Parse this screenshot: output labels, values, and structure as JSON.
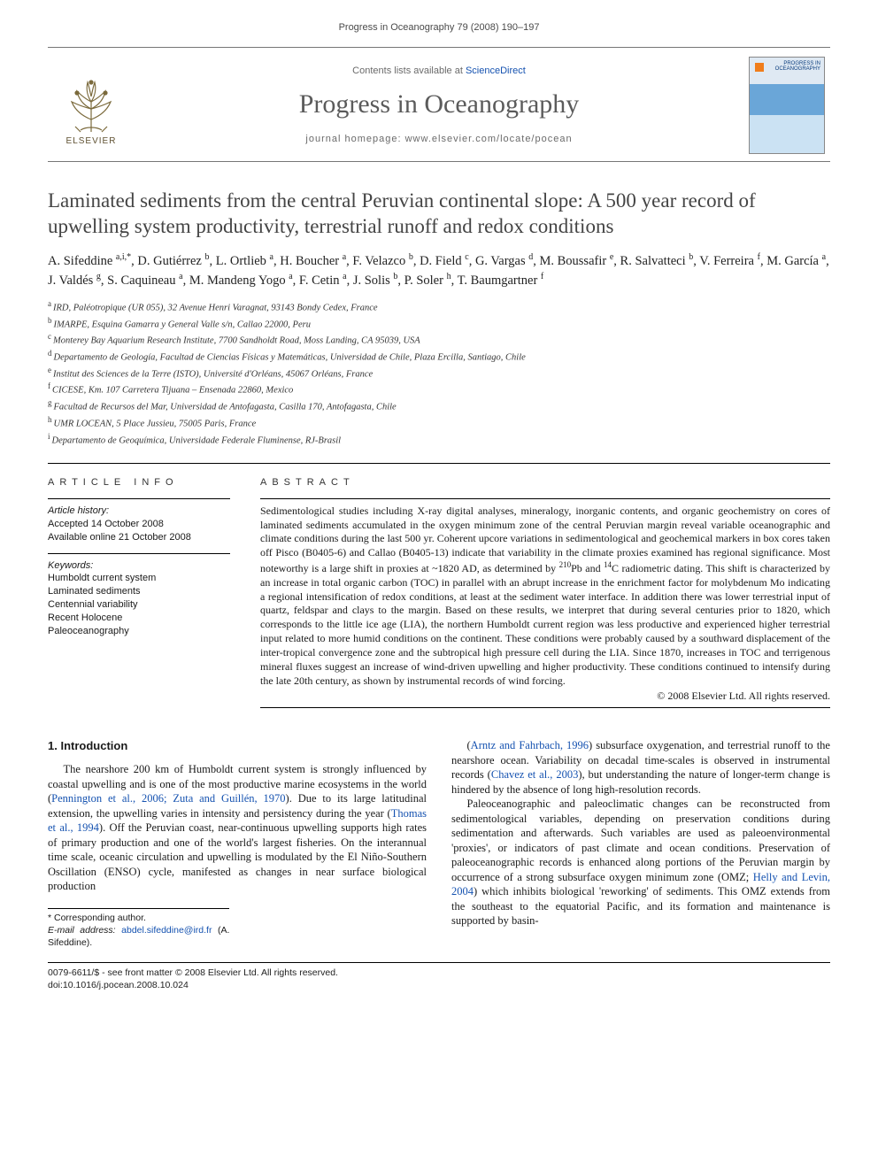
{
  "running_head": "Progress in Oceanography 79 (2008) 190–197",
  "masthead": {
    "contents_prefix": "Contents lists available at ",
    "contents_link": "ScienceDirect",
    "journal": "Progress in Oceanography",
    "homepage_label": "journal homepage: ",
    "homepage_url": "www.elsevier.com/locate/pocean",
    "publisher": "ELSEVIER",
    "cover_caption": "PROGRESS IN OCEANOGRAPHY"
  },
  "title": "Laminated sediments from the central Peruvian continental slope: A 500 year record of upwelling system productivity, terrestrial runoff and redox conditions",
  "authors_html": "A. Sifeddine <sup>a,i,*</sup>, D. Gutiérrez <sup>b</sup>, L. Ortlieb <sup>a</sup>, H. Boucher <sup>a</sup>, F. Velazco <sup>b</sup>, D. Field <sup>c</sup>, G. Vargas <sup>d</sup>, M. Boussafir <sup>e</sup>, R. Salvatteci <sup>b</sup>, V. Ferreira <sup>f</sup>, M. García <sup>a</sup>, J. Valdés <sup>g</sup>, S. Caquineau <sup>a</sup>, M. Mandeng Yogo <sup>a</sup>, F. Cetin <sup>a</sup>, J. Solis <sup>b</sup>, P. Soler <sup>h</sup>, T. Baumgartner <sup>f</sup>",
  "affiliations": [
    {
      "key": "a",
      "text": "IRD, Paléotropique (UR 055), 32 Avenue Henri Varagnat, 93143 Bondy Cedex, France"
    },
    {
      "key": "b",
      "text": "IMARPE, Esquina Gamarra y General Valle s/n, Callao 22000, Peru"
    },
    {
      "key": "c",
      "text": "Monterey Bay Aquarium Research Institute, 7700 Sandholdt Road, Moss Landing, CA 95039, USA"
    },
    {
      "key": "d",
      "text": "Departamento de Geología, Facultad de Ciencias Físicas y Matemáticas, Universidad de Chile, Plaza Ercilla, Santiago, Chile"
    },
    {
      "key": "e",
      "text": "Institut des Sciences de la Terre (ISTO), Université d'Orléans, 45067 Orléans, France"
    },
    {
      "key": "f",
      "text": "CICESE, Km. 107 Carretera Tijuana – Ensenada 22860, Mexico"
    },
    {
      "key": "g",
      "text": "Facultad de Recursos del Mar, Universidad de Antofagasta, Casilla 170, Antofagasta, Chile"
    },
    {
      "key": "h",
      "text": "UMR LOCEAN, 5 Place Jussieu, 75005 Paris, France"
    },
    {
      "key": "i",
      "text": "Departamento de Geoquímica, Universidade Federale Fluminense, RJ-Brasil"
    }
  ],
  "article_info": {
    "head": "ARTICLE INFO",
    "history_label": "Article history:",
    "accepted": "Accepted 14 October 2008",
    "online": "Available online 21 October 2008",
    "keywords_label": "Keywords:",
    "keywords": [
      "Humboldt current system",
      "Laminated sediments",
      "Centennial variability",
      "Recent Holocene",
      "Paleoceanography"
    ]
  },
  "abstract": {
    "head": "ABSTRACT",
    "body_html": "Sedimentological studies including X-ray digital analyses, mineralogy, inorganic contents, and organic geochemistry on cores of laminated sediments accumulated in the oxygen minimum zone of the central Peruvian margin reveal variable oceanographic and climate conditions during the last 500 yr. Coherent upcore variations in sedimentological and geochemical markers in box cores taken off Pisco (B0405-6) and Callao (B0405-13) indicate that variability in the climate proxies examined has regional significance. Most noteworthy is a large shift in proxies at ~1820 AD, as determined by <sup>210</sup>Pb and <sup>14</sup>C radiometric dating. This shift is characterized by an increase in total organic carbon (TOC) in parallel with an abrupt increase in the enrichment factor for molybdenum Mo indicating a regional intensification of redox conditions, at least at the sediment water interface. In addition there was lower terrestrial input of quartz, feldspar and clays to the margin. Based on these results, we interpret that during several centuries prior to 1820, which corresponds to the little ice age (LIA), the northern Humboldt current region was less productive and experienced higher terrestrial input related to more humid conditions on the continent. These conditions were probably caused by a southward displacement of the inter-tropical convergence zone and the subtropical high pressure cell during the LIA. Since 1870, increases in TOC and terrigenous mineral fluxes suggest an increase of wind-driven upwelling and higher productivity. These conditions continued to intensify during the late 20th century, as shown by instrumental records of wind forcing.",
    "copyright": "© 2008 Elsevier Ltd. All rights reserved."
  },
  "section1": {
    "heading": "1. Introduction",
    "p1_html": "The nearshore 200 km of Humboldt current system is strongly influenced by coastal upwelling and is one of the most productive marine ecosystems in the world (<a class=\"ref\" href=\"#\">Pennington et al., 2006; Zuta and Guillén, 1970</a>). Due to its large latitudinal extension, the upwelling varies in intensity and persistency during the year (<a class=\"ref\" href=\"#\">Thomas et al., 1994</a>). Off the Peruvian coast, near-continuous upwelling supports high rates of primary production and one of the world's largest fisheries. On the interannual time scale, oceanic circulation and upwelling is modulated by the El Niño-Southern Oscillation (ENSO) cycle, manifested as changes in near surface biological production",
    "p2_html": "(<a class=\"ref\" href=\"#\">Arntz and Fahrbach, 1996</a>) subsurface oxygenation, and terrestrial runoff to the nearshore ocean. Variability on decadal time-scales is observed in instrumental records (<a class=\"ref\" href=\"#\">Chavez et al., 2003</a>), but understanding the nature of longer-term change is hindered by the absence of long high-resolution records.",
    "p3_html": "Paleoceanographic and paleoclimatic changes can be reconstructed from sedimentological variables, depending on preservation conditions during sedimentation and afterwards. Such variables are used as paleoenvironmental 'proxies', or indicators of past climate and ocean conditions. Preservation of paleoceanographic records is enhanced along portions of the Peruvian margin by occurrence of a strong subsurface oxygen minimum zone (OMZ; <a class=\"ref\" href=\"#\">Helly and Levin, 2004</a>) which inhibits biological 'reworking' of sediments. This OMZ extends from the southeast to the equatorial Pacific, and its formation and maintenance is supported by basin-"
  },
  "corresponding": {
    "label": "* Corresponding author.",
    "email_label": "E-mail address:",
    "email": "abdel.sifeddine@ird.fr",
    "name_paren": "(A. Sifeddine)."
  },
  "footer": {
    "line1": "0079-6611/$ - see front matter © 2008 Elsevier Ltd. All rights reserved.",
    "line2": "doi:10.1016/j.pocean.2008.10.024"
  },
  "colors": {
    "link": "#1552b0",
    "text": "#1a1a1a",
    "muted": "#5b5b5b",
    "elsevier": "#7b6a3c"
  }
}
